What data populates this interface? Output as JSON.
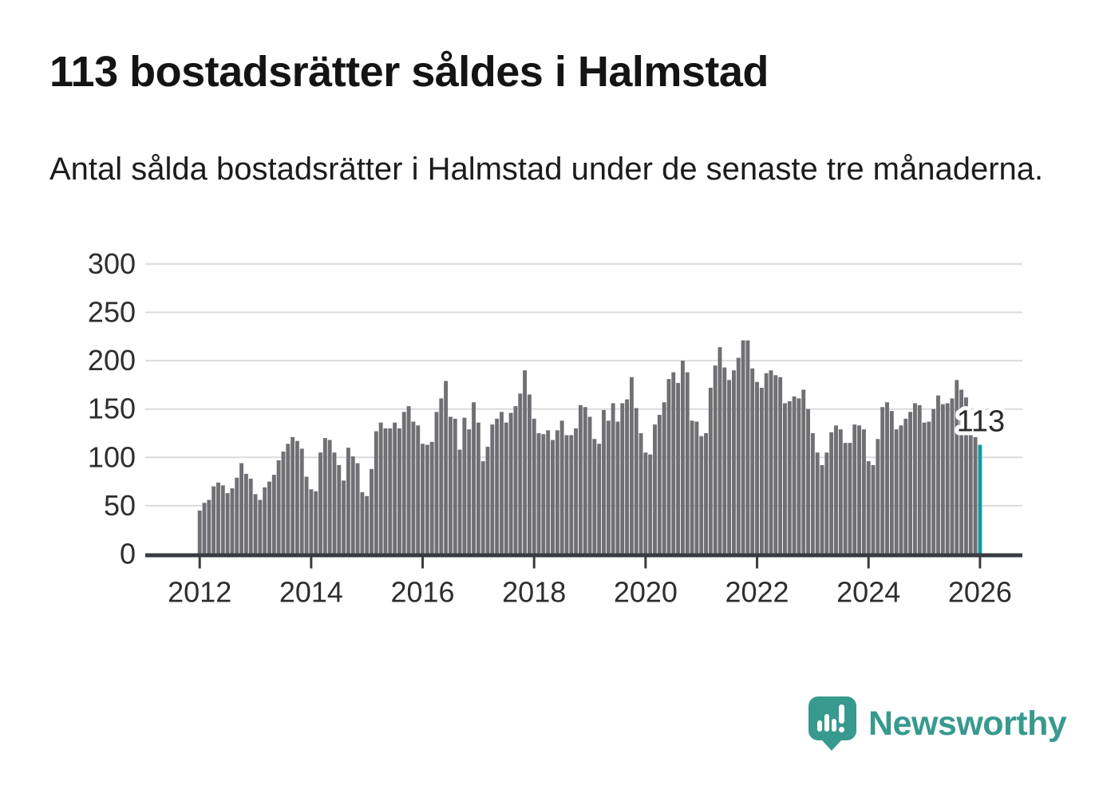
{
  "title": "113 bostadsrätter såldes i Halmstad",
  "subtitle": "Antal sålda bostadsrätter i Halmstad under de senaste tre månaderna.",
  "logo": {
    "text": "Newsworthy"
  },
  "colors": {
    "bar": "#707074",
    "highlight": "#149a9e",
    "axis": "#383c42",
    "gridline": "#dcdcdc",
    "tick_label": "#2e2e2e",
    "annotation_text": "#2b2b2b",
    "annotation_halo": "#ffffff",
    "logo_teal": "#38998f",
    "background": "#ffffff"
  },
  "chart_data": {
    "type": "bar",
    "title": "113 bostadsrätter såldes i Halmstad",
    "subtitle": "Antal sålda bostadsrätter i Halmstad under de senaste tre månaderna.",
    "x_start": "2012-01",
    "x_frequency": "monthly",
    "x_tick_labels": [
      "2012",
      "2014",
      "2016",
      "2018",
      "2020",
      "2022",
      "2024",
      "2026"
    ],
    "y_ticks": [
      0,
      50,
      100,
      150,
      200,
      250,
      300
    ],
    "ylim": [
      0,
      300
    ],
    "grid": "horizontal",
    "legend": "none",
    "annotation": "113",
    "highlighted_last_value": 113,
    "values": [
      45,
      53,
      56,
      70,
      74,
      71,
      63,
      68,
      79,
      94,
      83,
      78,
      62,
      56,
      69,
      75,
      82,
      97,
      106,
      114,
      121,
      117,
      109,
      80,
      67,
      65,
      105,
      120,
      118,
      105,
      92,
      76,
      110,
      101,
      94,
      64,
      60,
      88,
      127,
      136,
      130,
      130,
      136,
      130,
      147,
      153,
      137,
      133,
      114,
      113,
      116,
      147,
      161,
      179,
      142,
      140,
      108,
      141,
      129,
      157,
      136,
      96,
      111,
      134,
      140,
      147,
      136,
      146,
      153,
      166,
      190,
      165,
      140,
      125,
      124,
      128,
      118,
      128,
      138,
      123,
      123,
      130,
      154,
      152,
      142,
      119,
      114,
      149,
      138,
      156,
      137,
      156,
      160,
      183,
      151,
      125,
      105,
      103,
      134,
      144,
      157,
      181,
      188,
      177,
      200,
      188,
      138,
      137,
      122,
      125,
      172,
      195,
      214,
      193,
      180,
      190,
      203,
      221,
      221,
      192,
      178,
      172,
      187,
      190,
      185,
      183,
      156,
      158,
      163,
      161,
      170,
      150,
      125,
      105,
      92,
      105,
      126,
      133,
      129,
      115,
      115,
      134,
      133,
      129,
      96,
      92,
      119,
      152,
      157,
      148,
      129,
      133,
      140,
      147,
      156,
      154,
      136,
      137,
      150,
      164,
      155,
      156,
      161,
      180,
      170,
      162,
      130,
      121,
      113
    ]
  }
}
